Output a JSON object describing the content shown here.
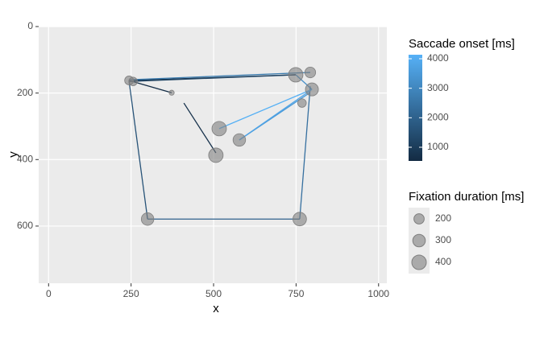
{
  "chart_data": {
    "type": "scanpath",
    "x_label": "x",
    "y_label": "y",
    "xlim": [
      -30,
      1025
    ],
    "ylim": [
      0,
      772
    ],
    "y_reversed": true,
    "xticks": [
      0,
      250,
      500,
      750,
      1000
    ],
    "yticks": [
      0,
      200,
      400,
      600
    ],
    "fixations": {
      "x": [
        244,
        373,
        507,
        517,
        578,
        749,
        793,
        798,
        768,
        300,
        761,
        256
      ],
      "y": [
        162,
        199,
        387,
        307,
        341,
        145,
        138,
        189,
        230,
        579,
        579,
        165
      ],
      "duration": [
        150,
        50,
        400,
        400,
        300,
        400,
        220,
        320,
        140,
        300,
        350,
        140
      ],
      "color": "#7f7f7f"
    },
    "saccades": {
      "x": [
        244,
        410,
        256,
        749,
        244,
        300,
        761,
        793,
        749,
        790,
        798,
        798
      ],
      "y": [
        162,
        230,
        162,
        145,
        165,
        579,
        579,
        138,
        145,
        200,
        189,
        189
      ],
      "xend": [
        373,
        507,
        749,
        244,
        300,
        761,
        793,
        244,
        798,
        578,
        578,
        517
      ],
      "yend": [
        199,
        380,
        145,
        165,
        579,
        579,
        180,
        160,
        189,
        341,
        341,
        307
      ],
      "onset": [
        600,
        700,
        900,
        1200,
        1600,
        2000,
        2400,
        2700,
        3200,
        3500,
        3800,
        4100
      ]
    },
    "color_legend": {
      "title": "Saccade onset [ms]",
      "lim": [
        536,
        4136
      ],
      "ticks": [
        1000,
        2000,
        3000,
        4000
      ],
      "low": "#132B43",
      "high": "#56B1F7"
    },
    "size_legend": {
      "title": "Fixation duration [ms]",
      "values": [
        200,
        300,
        400
      ]
    }
  }
}
